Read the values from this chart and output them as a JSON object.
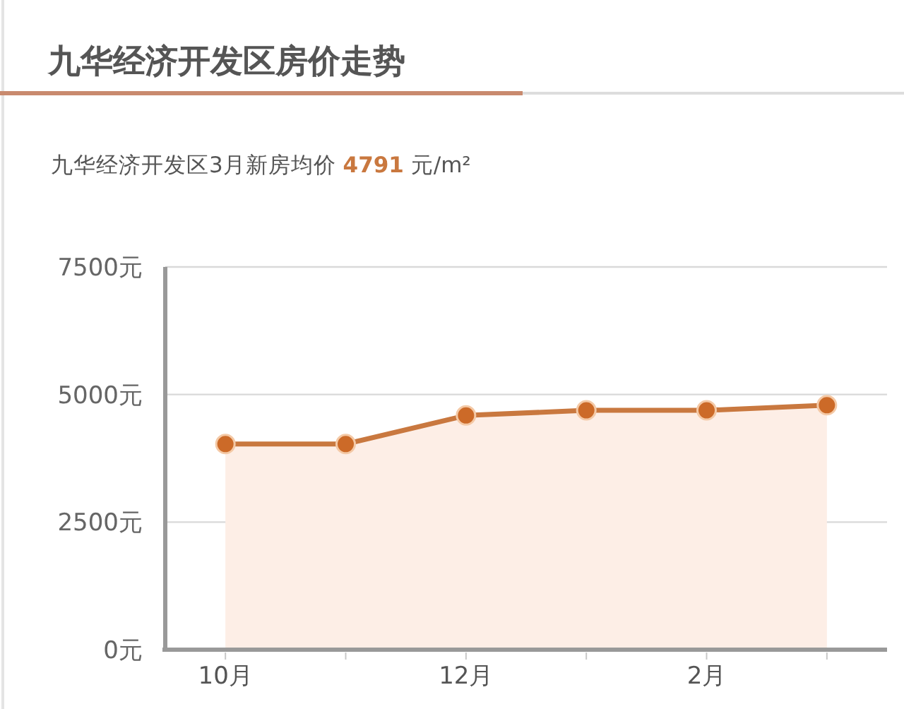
{
  "chart_data": {
    "type": "area",
    "title": "九华经济开发区房价走势",
    "subtitle": "九华经济开发区3月新房均价 **4791** 元/m²",
    "categories": [
      "10月",
      null,
      "12月",
      null,
      "2月",
      null
    ],
    "values": [
      4030,
      4030,
      4590,
      4690,
      4690,
      4791
    ],
    "color": "#c9783f",
    "ylim": [
      0,
      7500
    ],
    "yticks": [
      {
        "value": 0,
        "label": "0元"
      },
      {
        "value": 2500,
        "label": "2500元"
      },
      {
        "value": 5000,
        "label": "5000元"
      },
      {
        "value": 7500,
        "label": "7500元"
      }
    ],
    "grid": "y",
    "marker": "circle"
  }
}
